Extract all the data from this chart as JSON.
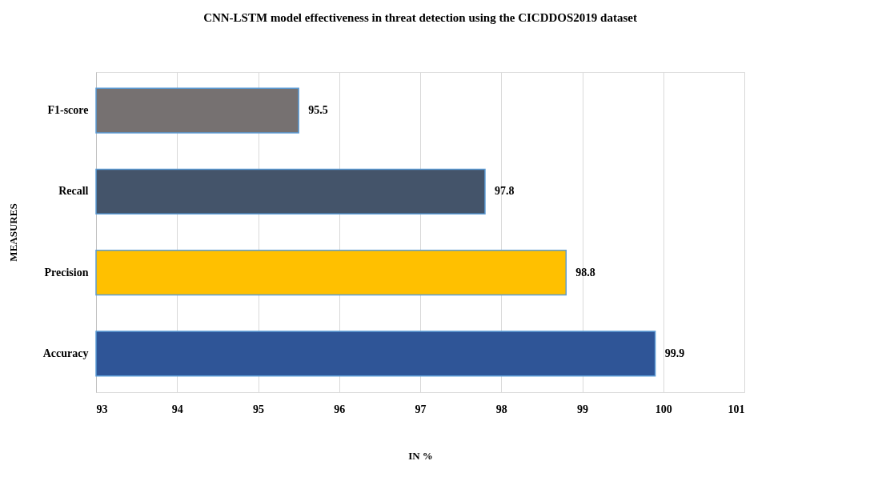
{
  "chart_data": {
    "type": "bar",
    "orientation": "horizontal",
    "title": "CNN-LSTM model effectiveness in threat detection using the CICDDOS2019 dataset",
    "xlabel": "IN %",
    "ylabel": "MEASURES",
    "categories": [
      "F1-score",
      "Recall",
      "Precision",
      "Accuracy"
    ],
    "values": [
      95.5,
      97.8,
      98.8,
      99.9
    ],
    "colors": [
      "#767171",
      "#44546a",
      "#ffc000",
      "#2f5597"
    ],
    "xlim": [
      93,
      101
    ],
    "xticks": [
      93,
      94,
      95,
      96,
      97,
      98,
      99,
      100,
      101
    ],
    "grid": "x",
    "data_labels": true
  }
}
